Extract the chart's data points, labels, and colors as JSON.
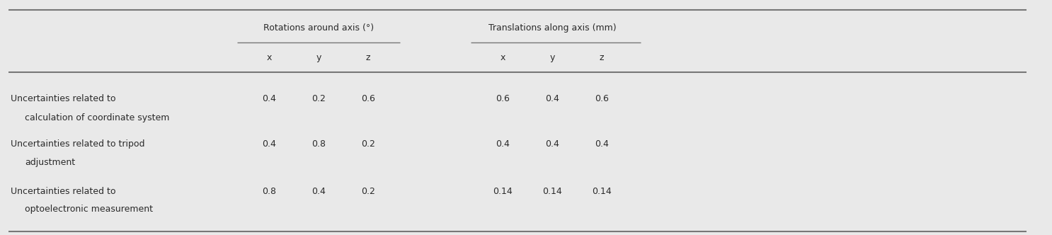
{
  "background_color": "#e9e9e9",
  "header_group1": "Rotations around axis (°)",
  "header_group2": "Translations along axis (mm)",
  "sub_headers_rot": [
    "x",
    "y",
    "z"
  ],
  "sub_headers_trans": [
    "x",
    "y",
    "z"
  ],
  "row_labels": [
    [
      "Uncertainties related to",
      "calculation of coordinate system"
    ],
    [
      "Uncertainties related to tripod",
      "adjustment"
    ],
    [
      "Uncertainties related to",
      "optoelectronic measurement"
    ]
  ],
  "row_data": [
    [
      "0.4",
      "0.2",
      "0.6",
      "0.6",
      "0.4",
      "0.6"
    ],
    [
      "0.4",
      "0.8",
      "0.2",
      "0.4",
      "0.4",
      "0.4"
    ],
    [
      "0.8",
      "0.4",
      "0.2",
      "0.14",
      "0.14",
      "0.14"
    ]
  ],
  "figsize": [
    14.86,
    3.32
  ],
  "dpi": 100,
  "font_color": "#2a2a2a",
  "line_color": "#777777",
  "font_size": 9.0,
  "font_family": "DejaVu Sans"
}
